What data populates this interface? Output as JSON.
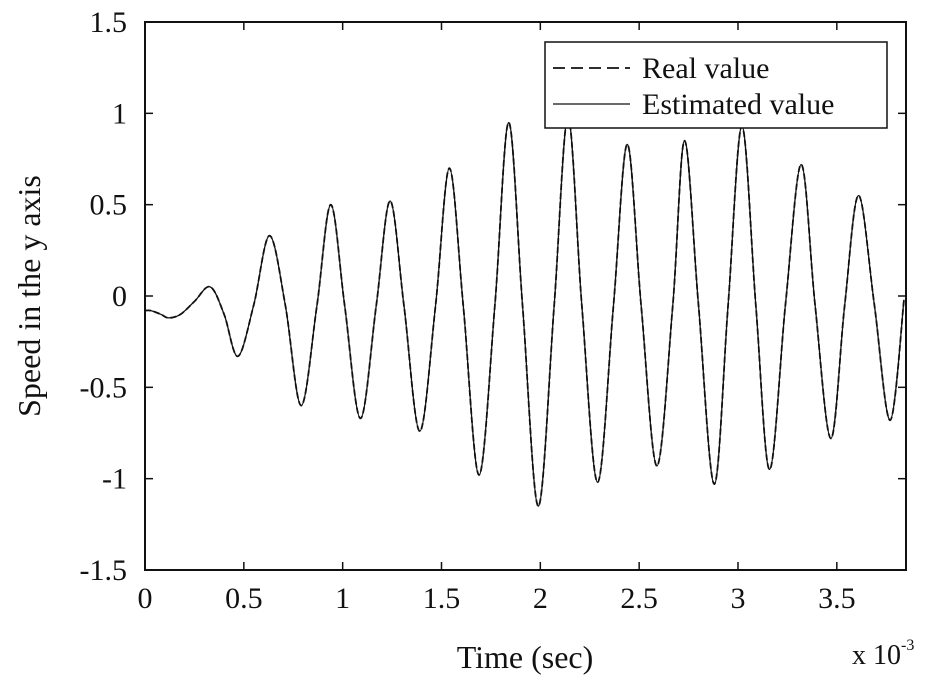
{
  "chart_data": {
    "type": "line",
    "xlabel": "Time (sec)",
    "ylabel": "Speed in the y axis",
    "x_multiplier": {
      "base": "x 10",
      "exponent": "-3"
    },
    "xlim": [
      0,
      3.85
    ],
    "ylim": [
      -1.5,
      1.5
    ],
    "xticks": [
      0,
      0.5,
      1,
      1.5,
      2,
      2.5,
      3,
      3.5
    ],
    "xtick_labels": [
      "0",
      "0.5",
      "1",
      "1.5",
      "2",
      "2.5",
      "3",
      "3.5"
    ],
    "yticks": [
      -1.5,
      -1,
      -0.5,
      0,
      0.5,
      1,
      1.5
    ],
    "ytick_labels": [
      "-1.5",
      "-1",
      "-0.5",
      "0",
      "0.5",
      "1",
      "1.5"
    ],
    "grid": false,
    "legend_position": "top-right",
    "series": [
      {
        "name": "Real value",
        "style": "dashed",
        "color": "#111111",
        "x": [
          0,
          0.03,
          0.08,
          0.12,
          0.18,
          0.25,
          0.33,
          0.4,
          0.47,
          0.55,
          0.63,
          0.71,
          0.79,
          0.87,
          0.94,
          1.01,
          1.09,
          1.17,
          1.24,
          1.31,
          1.39,
          1.47,
          1.54,
          1.61,
          1.69,
          1.77,
          1.84,
          1.91,
          1.99,
          2.07,
          2.14,
          2.21,
          2.29,
          2.37,
          2.44,
          2.51,
          2.59,
          2.67,
          2.73,
          2.8,
          2.88,
          2.95,
          3.02,
          3.09,
          3.16,
          3.24,
          3.32,
          3.39,
          3.47,
          3.54,
          3.61,
          3.69,
          3.77,
          3.84
        ],
        "y": [
          -0.08,
          -0.08,
          -0.1,
          -0.12,
          -0.1,
          -0.03,
          0.05,
          -0.1,
          -0.33,
          -0.05,
          0.33,
          -0.05,
          -0.6,
          -0.05,
          0.5,
          -0.05,
          -0.67,
          -0.05,
          0.52,
          -0.05,
          -0.74,
          -0.05,
          0.7,
          -0.05,
          -0.98,
          -0.05,
          0.95,
          -0.05,
          -1.15,
          -0.05,
          0.98,
          -0.05,
          -1.02,
          -0.05,
          0.83,
          -0.05,
          -0.93,
          -0.05,
          0.85,
          -0.05,
          -1.03,
          -0.05,
          0.93,
          -0.05,
          -0.95,
          -0.05,
          0.72,
          -0.05,
          -0.78,
          -0.05,
          0.55,
          -0.05,
          -0.68,
          -0.02
        ]
      },
      {
        "name": "Estimated value",
        "style": "solid",
        "color": "#111111",
        "x": [
          0,
          0.03,
          0.08,
          0.12,
          0.18,
          0.25,
          0.33,
          0.4,
          0.47,
          0.55,
          0.63,
          0.71,
          0.79,
          0.87,
          0.94,
          1.01,
          1.09,
          1.17,
          1.24,
          1.31,
          1.39,
          1.47,
          1.54,
          1.61,
          1.69,
          1.77,
          1.84,
          1.91,
          1.99,
          2.07,
          2.14,
          2.21,
          2.29,
          2.37,
          2.44,
          2.51,
          2.59,
          2.67,
          2.73,
          2.8,
          2.88,
          2.95,
          3.02,
          3.09,
          3.16,
          3.24,
          3.32,
          3.39,
          3.47,
          3.54,
          3.61,
          3.69,
          3.77,
          3.84
        ],
        "y": [
          -0.08,
          -0.08,
          -0.1,
          -0.12,
          -0.1,
          -0.03,
          0.05,
          -0.1,
          -0.33,
          -0.05,
          0.33,
          -0.05,
          -0.6,
          -0.05,
          0.5,
          -0.05,
          -0.67,
          -0.05,
          0.52,
          -0.05,
          -0.74,
          -0.05,
          0.7,
          -0.05,
          -0.98,
          -0.05,
          0.95,
          -0.05,
          -1.15,
          -0.05,
          0.98,
          -0.05,
          -1.02,
          -0.05,
          0.83,
          -0.05,
          -0.93,
          -0.05,
          0.85,
          -0.05,
          -1.03,
          -0.05,
          0.93,
          -0.05,
          -0.95,
          -0.05,
          0.72,
          -0.05,
          -0.78,
          -0.05,
          0.55,
          -0.05,
          -0.68,
          -0.02
        ]
      }
    ]
  }
}
